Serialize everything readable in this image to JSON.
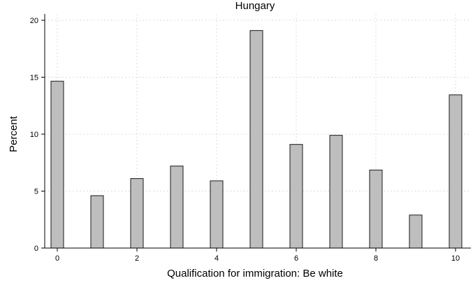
{
  "chart_data": {
    "type": "bar",
    "title": "Hungary",
    "xlabel": "Qualification for immigration: Be white",
    "ylabel": "Percent",
    "x": [
      0,
      1,
      2,
      3,
      4,
      5,
      6,
      7,
      8,
      9,
      10
    ],
    "values": [
      14.65,
      4.6,
      6.1,
      7.2,
      5.9,
      19.1,
      9.1,
      9.9,
      6.85,
      2.9,
      13.45
    ],
    "xlim": [
      0,
      10
    ],
    "ylim": [
      0,
      20
    ],
    "xticks": [
      0,
      2,
      4,
      6,
      8,
      10
    ],
    "yticks": [
      0,
      5,
      10,
      15,
      20
    ],
    "grid": true,
    "colors": {
      "bar_fill": "#bebebe",
      "bar_stroke": "#1a1a1a",
      "grid": "#dcdcdc",
      "axis": "#000000"
    }
  }
}
